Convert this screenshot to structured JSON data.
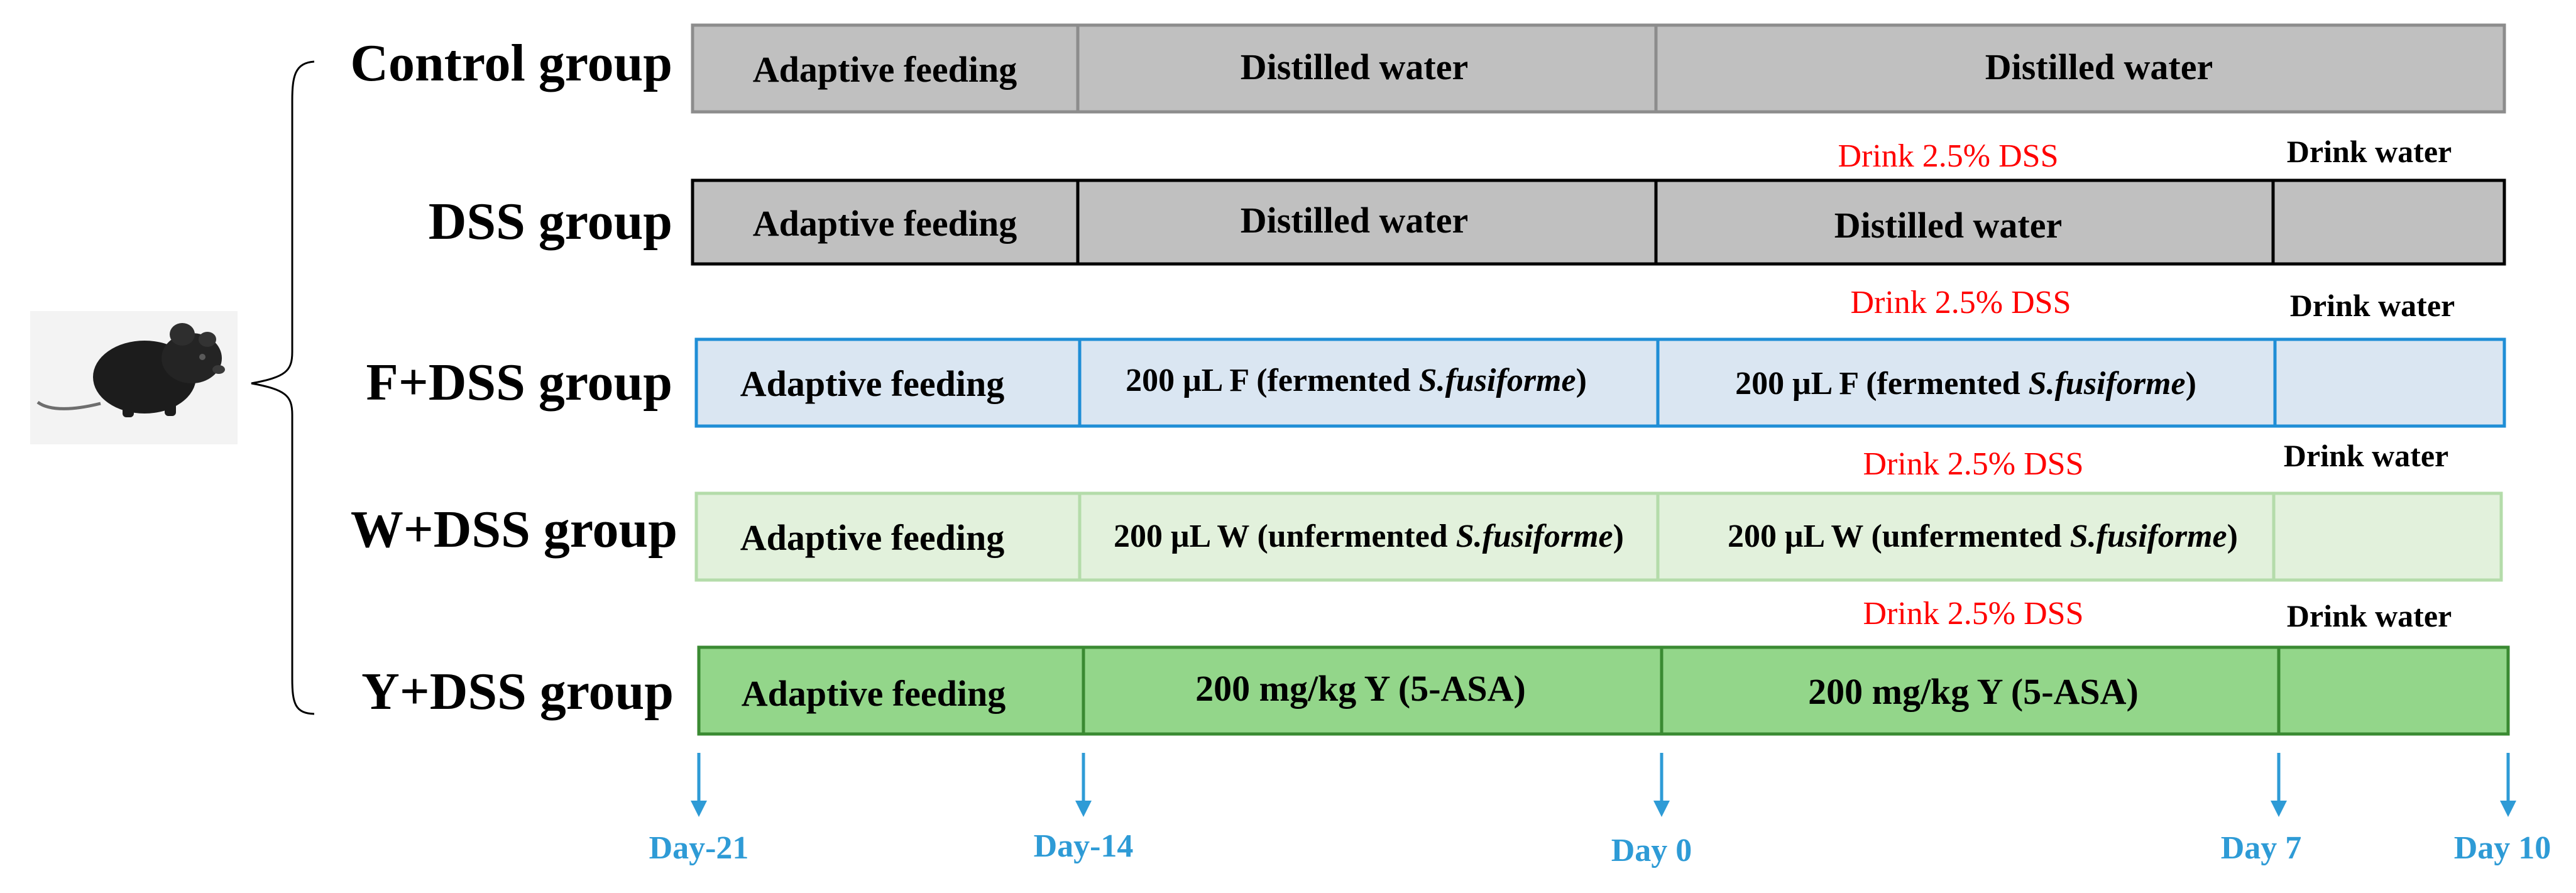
{
  "colors": {
    "day_blue": "#2e9bd6",
    "note_red": "#ff0000",
    "control_fill": "#c0c0c0",
    "control_border": "#8c8c8c",
    "dss_fill": "#c0c0c0",
    "dss_border": "#000000",
    "f_fill": "#dae6f2",
    "f_border": "#1f8ed6",
    "w_fill": "#e2f1dc",
    "w_border": "#b4dcaa",
    "y_fill": "#93d68a",
    "y_border": "#3a8a32"
  },
  "mouse": {
    "icon": "mouse-icon"
  },
  "groups": [
    {
      "key": "control",
      "label": "Control group",
      "cells": [
        "Adaptive feeding",
        "Distilled water",
        "Distilled water"
      ],
      "has_drink_period": false
    },
    {
      "key": "dss",
      "label": "DSS group",
      "cells": [
        "Adaptive feeding",
        "Distilled water",
        "Distilled water",
        ""
      ],
      "dss_note": "Drink 2.5% DSS",
      "water_note": "Drink water",
      "has_drink_period": true
    },
    {
      "key": "f",
      "label": "F+DSS group",
      "cells": [
        "Adaptive feeding",
        "",
        "",
        ""
      ],
      "treatment_prefix": "200 μL  F (fermented ",
      "treatment_species": "S.fusiforme",
      "treatment_suffix": ")",
      "dss_note": "Drink 2.5% DSS",
      "water_note": "Drink water",
      "has_drink_period": true
    },
    {
      "key": "w",
      "label": "W+DSS group",
      "cells": [
        "Adaptive feeding",
        "",
        "",
        ""
      ],
      "treatment_prefix": "200 μL  W (unfermented ",
      "treatment_species": "S.fusiforme",
      "treatment_suffix": ")",
      "dss_note": "Drink 2.5% DSS",
      "water_note": "Drink water",
      "has_drink_period": true
    },
    {
      "key": "y",
      "label": "Y+DSS group",
      "cells": [
        "Adaptive feeding",
        "200 mg/kg  Y (5-ASA)",
        "200 mg/kg  Y (5-ASA)",
        ""
      ],
      "dss_note": "Drink 2.5% DSS",
      "water_note": "Drink water",
      "has_drink_period": true
    }
  ],
  "timeline": {
    "days": [
      "Day-21",
      "Day-14",
      "Day 0",
      "Day 7",
      "Day 10"
    ]
  }
}
